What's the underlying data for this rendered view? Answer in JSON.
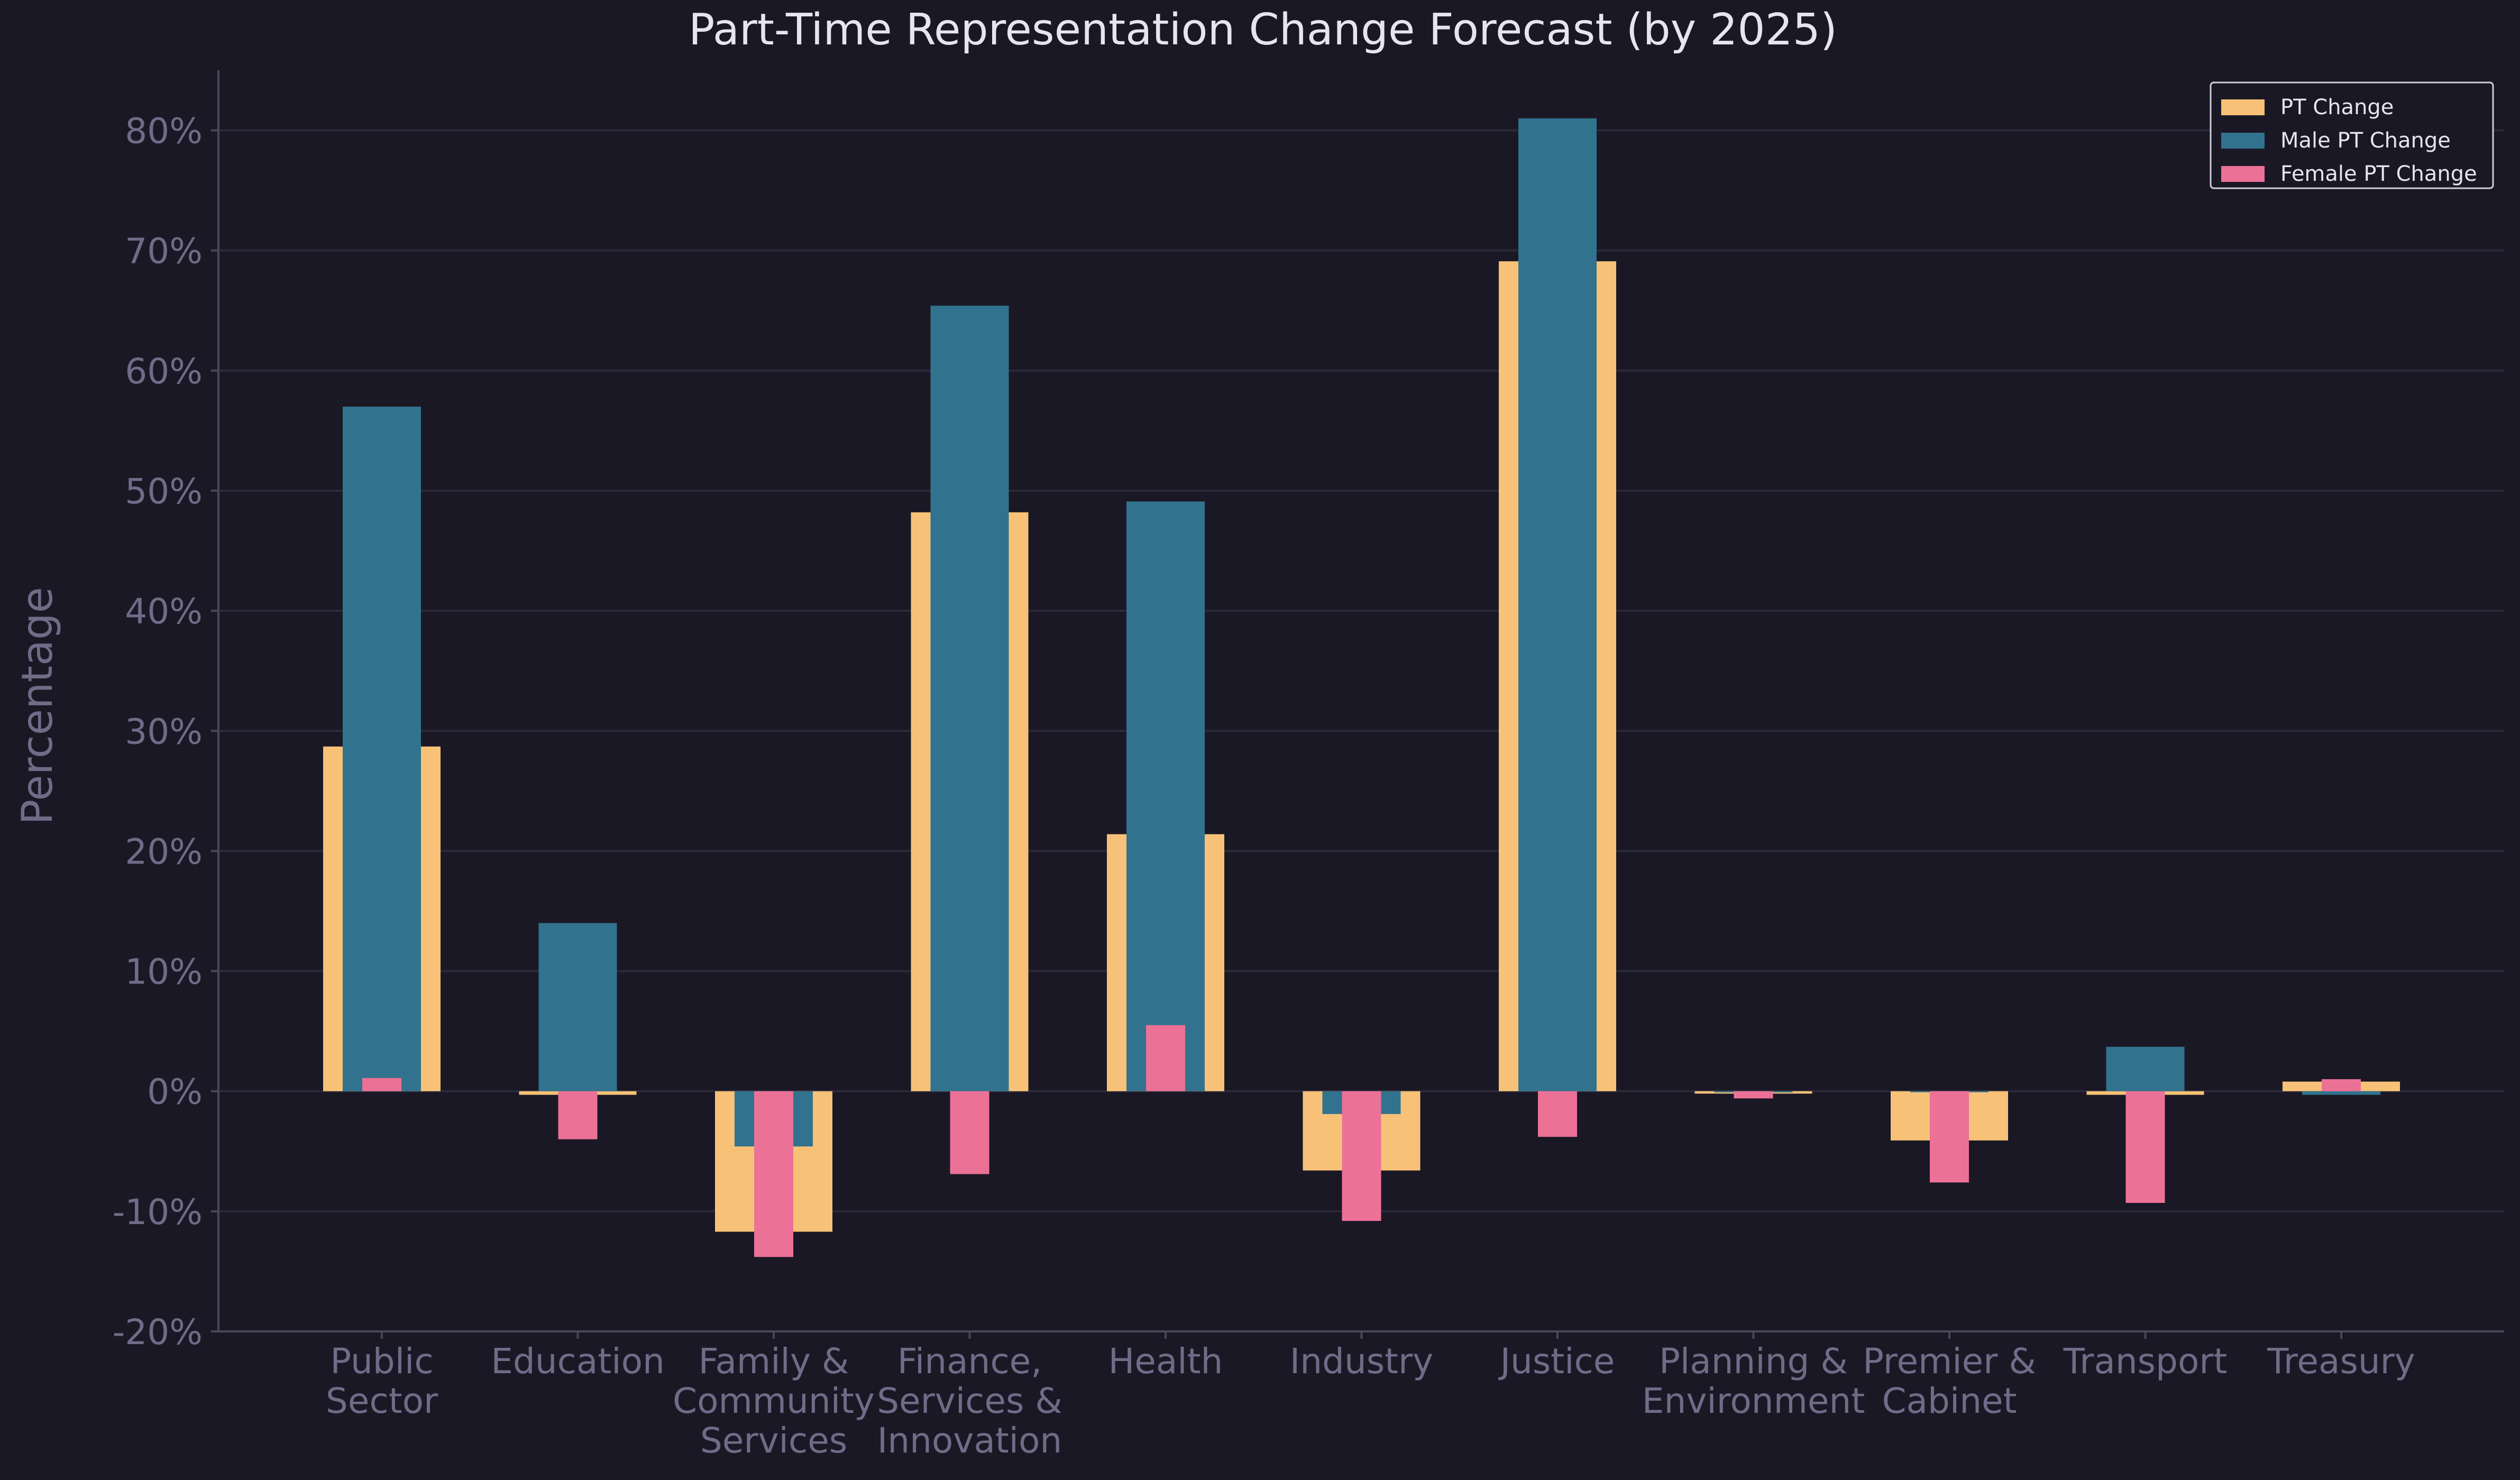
{
  "chart_data": {
    "type": "bar",
    "title": "Part-Time Representation Change Forecast (by 2025)",
    "xlabel": "",
    "ylabel": "Percentage",
    "ylim": [
      -20,
      85
    ],
    "yticks": [
      -20,
      -10,
      0,
      10,
      20,
      30,
      40,
      50,
      60,
      70,
      80
    ],
    "ytick_labels": [
      "-20%",
      "-10%",
      "0%",
      "10%",
      "20%",
      "30%",
      "40%",
      "50%",
      "60%",
      "70%",
      "80%"
    ],
    "grid": true,
    "legend_position": "top-right",
    "categories": [
      [
        "Public",
        "Sector"
      ],
      [
        "Education"
      ],
      [
        "Family &",
        "Community",
        "Services"
      ],
      [
        "Finance,",
        "Services &",
        "Innovation"
      ],
      [
        "Health"
      ],
      [
        "Industry"
      ],
      [
        "Justice"
      ],
      [
        "Planning &",
        "Environment"
      ],
      [
        "Premier &",
        "Cabinet"
      ],
      [
        "Transport"
      ],
      [
        "Treasury"
      ]
    ],
    "series": [
      {
        "name": "PT Change",
        "color": "#f7c277",
        "values": [
          28.7,
          -0.3,
          -11.7,
          48.2,
          21.4,
          -6.6,
          69.1,
          -0.2,
          -4.1,
          -0.3,
          0.8
        ]
      },
      {
        "name": "Male PT Change",
        "color": "#31738e",
        "values": [
          57.0,
          14.0,
          -4.6,
          65.4,
          49.1,
          -1.9,
          81.0,
          -0.1,
          0.0,
          3.7,
          -0.3
        ]
      },
      {
        "name": "Female PT Change",
        "color": "#ec7197",
        "values": [
          1.1,
          -4.0,
          -13.8,
          -6.9,
          5.5,
          -10.8,
          -3.8,
          -0.6,
          -7.6,
          -9.3,
          1.0
        ]
      }
    ],
    "colors": {
      "background": "#1b1825",
      "text": "#e6e4ee",
      "tick_text": "#716b88",
      "grid": "#2c2938",
      "axis": "#4a4659",
      "legend_border": "#d0cedb",
      "legend_text": "#e6e4ee"
    }
  }
}
